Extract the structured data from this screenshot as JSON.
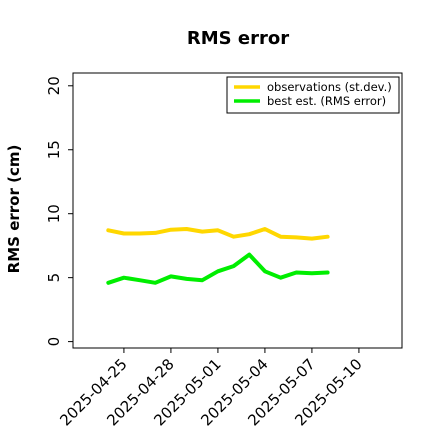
{
  "chart_data": {
    "type": "line",
    "title": "RMS error",
    "xlabel": "",
    "ylabel": "RMS error (cm)",
    "x_ticks": [
      "2025-04-25",
      "2025-04-28",
      "2025-05-01",
      "2025-05-04",
      "2025-05-07",
      "2025-05-10"
    ],
    "highlighted_tick": "2025-05-01",
    "highlight_color": "#2e8b2e",
    "y_ticks": [
      0,
      5,
      10,
      15,
      20
    ],
    "ylim": [
      -0.5,
      21
    ],
    "xlim": [
      "2025-04-21T18:00",
      "2025-05-12T18:00"
    ],
    "grid": false,
    "legend_position": "top-right",
    "x": [
      "2025-04-24",
      "2025-04-25",
      "2025-04-26",
      "2025-04-27",
      "2025-04-28",
      "2025-04-29",
      "2025-04-30",
      "2025-05-01",
      "2025-05-02",
      "2025-05-03",
      "2025-05-04",
      "2025-05-05",
      "2025-05-06",
      "2025-05-07",
      "2025-05-08"
    ],
    "series": [
      {
        "name": "observations (st.dev.)",
        "color": "#ffd700",
        "values": [
          8.7,
          8.45,
          8.45,
          8.5,
          8.75,
          8.8,
          8.6,
          8.7,
          8.2,
          8.4,
          8.8,
          8.2,
          8.15,
          8.05,
          8.2
        ]
      },
      {
        "name": "best est. (RMS error)",
        "color": "#00ee00",
        "values": [
          4.6,
          5.0,
          4.8,
          4.6,
          5.1,
          4.9,
          4.8,
          5.5,
          5.9,
          6.8,
          5.5,
          5.0,
          5.4,
          5.35,
          5.4
        ]
      }
    ]
  }
}
